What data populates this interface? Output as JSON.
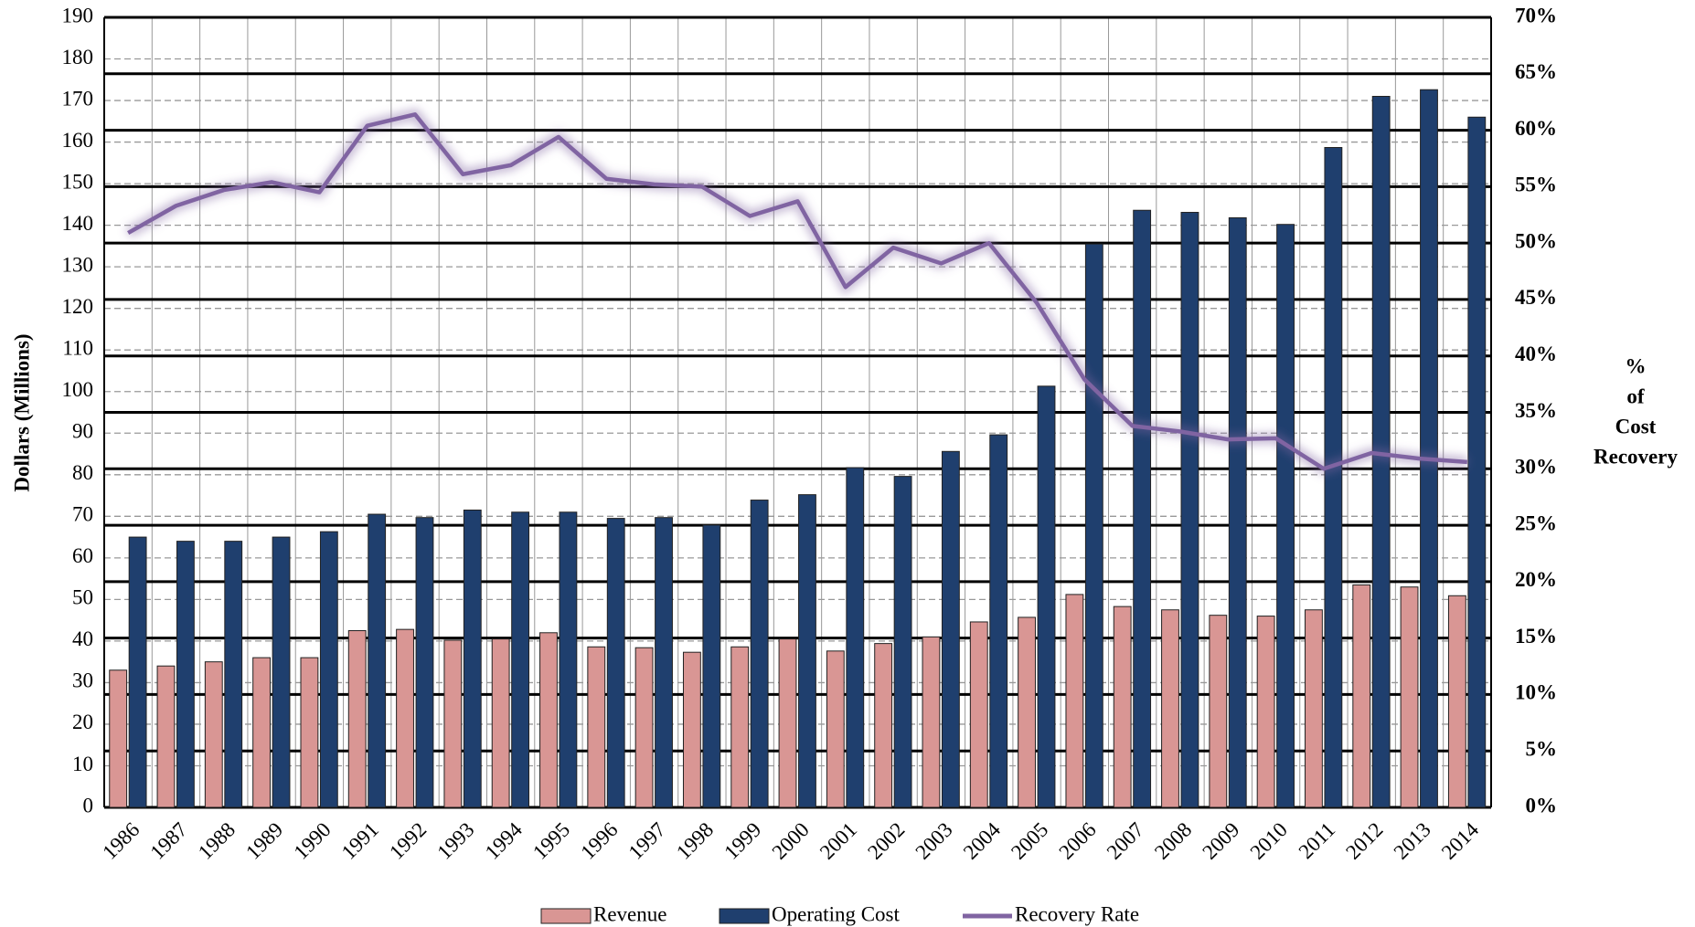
{
  "chart_data": {
    "type": "bar",
    "ylabel": "Dollars (Millions)",
    "y2label": [
      "%",
      "of",
      "Cost",
      "Recovery"
    ],
    "categories": [
      "1986",
      "1987",
      "1988",
      "1989",
      "1990",
      "1991",
      "1992",
      "1993",
      "1994",
      "1995",
      "1996",
      "1997",
      "1998",
      "1999",
      "2000",
      "2001",
      "2002",
      "2003",
      "2004",
      "2005",
      "2006",
      "2007",
      "2008",
      "2009",
      "2010",
      "2011",
      "2012",
      "2013",
      "2014"
    ],
    "series": [
      {
        "name": "Revenue",
        "type": "bar",
        "color": "#d99694",
        "values": [
          33,
          34,
          35,
          36,
          36,
          42.5,
          42.8,
          40.2,
          40.5,
          42,
          38.6,
          38.4,
          37.3,
          38.6,
          40.5,
          37.6,
          39.4,
          41,
          44.6,
          45.7,
          51.2,
          48.3,
          47.5,
          46.2,
          46,
          47.5,
          53.5,
          53,
          50.9
        ]
      },
      {
        "name": "Operating Cost",
        "type": "bar",
        "color": "#1f3f6e",
        "values": [
          65,
          64,
          64,
          65,
          66.3,
          70.5,
          69.7,
          71.5,
          71,
          71,
          69.5,
          69.7,
          67.9,
          73.9,
          75.2,
          81.7,
          79.6,
          85.6,
          89.6,
          101.3,
          135.5,
          143.6,
          143.1,
          141.8,
          140.2,
          158.7,
          171,
          172.6,
          166
        ]
      },
      {
        "name": "Recovery Rate",
        "type": "line",
        "axis": "y2",
        "color": "#8064a2",
        "values": [
          50.9,
          53.3,
          54.7,
          55.4,
          54.5,
          60.4,
          61.4,
          56.1,
          56.9,
          59.4,
          55.7,
          55.2,
          55,
          52.4,
          53.7,
          46.1,
          49.6,
          48.2,
          50,
          44.7,
          37.9,
          33.8,
          33.3,
          32.6,
          32.7,
          30,
          31.4,
          30.9,
          30.6
        ]
      }
    ],
    "ylim": [
      0,
      190
    ],
    "yticks": [
      0,
      10,
      20,
      30,
      40,
      50,
      60,
      70,
      80,
      90,
      100,
      110,
      120,
      130,
      140,
      150,
      160,
      170,
      180,
      190
    ],
    "y2lim": [
      0,
      70
    ],
    "y2ticks": [
      {
        "value": 0,
        "label": "0%"
      },
      {
        "value": 5,
        "label": "5%"
      },
      {
        "value": 10,
        "label": "10%"
      },
      {
        "value": 15,
        "label": "15%"
      },
      {
        "value": 20,
        "label": "20%"
      },
      {
        "value": 25,
        "label": "25%"
      },
      {
        "value": 30,
        "label": "30%"
      },
      {
        "value": 35,
        "label": "35%"
      },
      {
        "value": 40,
        "label": "40%"
      },
      {
        "value": 45,
        "label": "45%"
      },
      {
        "value": 50,
        "label": "50%"
      },
      {
        "value": 55,
        "label": "55%"
      },
      {
        "value": 60,
        "label": "60%"
      },
      {
        "value": 65,
        "label": "65%"
      },
      {
        "value": 70,
        "label": "70%"
      }
    ],
    "grid": true,
    "legend": "bottom"
  }
}
